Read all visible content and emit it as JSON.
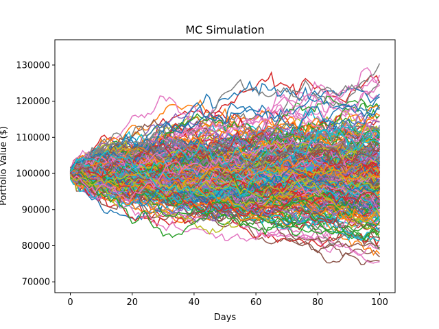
{
  "chart_data": {
    "type": "line",
    "title": "MC Simulation",
    "xlabel": "Days",
    "ylabel": "Portfolio Value ($)",
    "xlim": [
      -5,
      105
    ],
    "ylim": [
      67000,
      137000
    ],
    "xticks": [
      0,
      20,
      40,
      60,
      80,
      100
    ],
    "yticks": [
      70000,
      80000,
      90000,
      100000,
      110000,
      120000,
      130000
    ],
    "num_simulations": 300,
    "num_days": 100,
    "initial_value": 100000,
    "grid": false,
    "legend": false,
    "palette": [
      "#1f77b4",
      "#ff7f0e",
      "#2ca02c",
      "#d62728",
      "#9467bd",
      "#8c564b",
      "#e377c2",
      "#7f7f7f",
      "#bcbd22",
      "#17becf"
    ]
  }
}
